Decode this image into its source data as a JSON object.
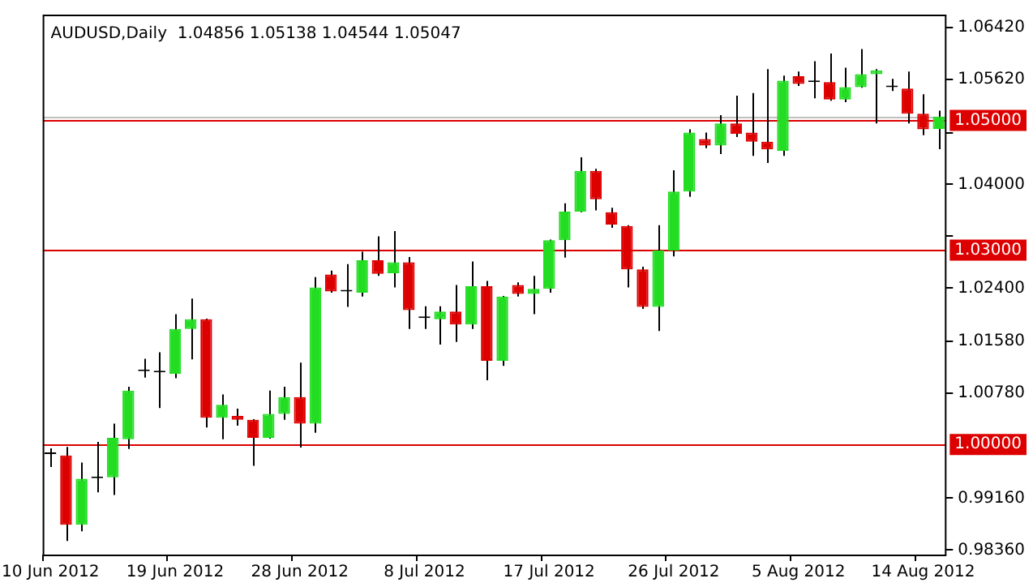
{
  "chart_data": {
    "type": "candlestick",
    "title": "AUDUSD,Daily  1.04856 1.05138 1.04544 1.05047",
    "categories": [
      "10 Jun 2012",
      null,
      null,
      null,
      null,
      null,
      null,
      null,
      "19 Jun 2012",
      null,
      null,
      null,
      null,
      null,
      null,
      null,
      "28 Jun 2012",
      null,
      null,
      null,
      null,
      null,
      null,
      null,
      "8 Jul 2012",
      null,
      null,
      null,
      null,
      null,
      null,
      null,
      "17 Jul 2012",
      null,
      null,
      null,
      null,
      null,
      null,
      null,
      "26 Jul 2012",
      null,
      null,
      null,
      null,
      null,
      null,
      null,
      "5 Aug 2012",
      null,
      null,
      null,
      null,
      null,
      null,
      null,
      "14 Aug 2012",
      null
    ],
    "ohlc": [
      [
        0.9984,
        0.9993,
        0.9964,
        0.9984
      ],
      [
        0.9982,
        0.9995,
        0.985,
        0.9875
      ],
      [
        0.9875,
        0.9971,
        0.9865,
        0.9946
      ],
      [
        0.9947,
        1.0003,
        0.9925,
        0.9947
      ],
      [
        0.9948,
        1.0031,
        0.9921,
        1.0009
      ],
      [
        1.0007,
        1.0088,
        0.9992,
        1.0082
      ],
      [
        1.0112,
        1.0131,
        1.0102,
        1.0112
      ],
      [
        1.011,
        1.0141,
        1.0055,
        1.011
      ],
      [
        1.0108,
        1.02,
        1.0101,
        1.0177
      ],
      [
        1.0177,
        1.0224,
        1.013,
        1.0192
      ],
      [
        1.0192,
        1.0193,
        1.0025,
        1.004
      ],
      [
        1.004,
        1.0076,
        1.0007,
        1.006
      ],
      [
        1.0043,
        1.0054,
        1.0028,
        1.0037
      ],
      [
        1.0037,
        1.0038,
        0.9966,
        1.0009
      ],
      [
        1.0009,
        1.0082,
        1.0008,
        1.0046
      ],
      [
        1.0046,
        1.0088,
        1.0037,
        1.0072
      ],
      [
        1.0072,
        1.0125,
        0.9994,
        1.0031
      ],
      [
        1.0031,
        1.0257,
        1.0017,
        1.0241
      ],
      [
        1.0261,
        1.0267,
        1.0233,
        1.0235
      ],
      [
        1.0235,
        1.0277,
        1.0211,
        1.0235
      ],
      [
        1.0233,
        1.0296,
        1.0227,
        1.0283
      ],
      [
        1.0283,
        1.032,
        1.0259,
        1.0262
      ],
      [
        1.0263,
        1.0328,
        1.0241,
        1.028
      ],
      [
        1.028,
        1.0288,
        1.0177,
        1.0206
      ],
      [
        1.0194,
        1.0212,
        1.0177,
        1.0194
      ],
      [
        1.0192,
        1.0212,
        1.0153,
        1.0204
      ],
      [
        1.0204,
        1.0245,
        1.0157,
        1.0184
      ],
      [
        1.0184,
        1.0281,
        1.0177,
        1.0243
      ],
      [
        1.0243,
        1.0251,
        1.0098,
        1.0128
      ],
      [
        1.0128,
        1.0228,
        1.012,
        1.0227
      ],
      [
        1.0245,
        1.0249,
        1.0227,
        1.0231
      ],
      [
        1.0231,
        1.0259,
        1.02,
        1.0239
      ],
      [
        1.0239,
        1.0315,
        1.0233,
        1.0314
      ],
      [
        1.0314,
        1.0371,
        1.0287,
        1.0358
      ],
      [
        1.0358,
        1.0442,
        1.0357,
        1.0421
      ],
      [
        1.0421,
        1.0424,
        1.036,
        1.0377
      ],
      [
        1.0357,
        1.0364,
        1.0333,
        1.0338
      ],
      [
        1.0336,
        1.0337,
        1.0241,
        1.0269
      ],
      [
        1.0269,
        1.0273,
        1.0208,
        1.0211
      ],
      [
        1.0211,
        1.0337,
        1.0174,
        1.0298
      ],
      [
        1.0298,
        1.0422,
        1.0289,
        1.0389
      ],
      [
        1.0389,
        1.0485,
        1.0381,
        1.048
      ],
      [
        1.047,
        1.048,
        1.0456,
        1.046
      ],
      [
        1.046,
        1.0507,
        1.0447,
        1.0494
      ],
      [
        1.0494,
        1.0537,
        1.0473,
        1.0478
      ],
      [
        1.048,
        1.0541,
        1.0444,
        1.0466
      ],
      [
        1.0466,
        1.0578,
        1.0433,
        1.0454
      ],
      [
        1.0452,
        1.0568,
        1.0444,
        1.056
      ],
      [
        1.0567,
        1.0574,
        1.0552,
        1.0555
      ],
      [
        1.0558,
        1.059,
        1.0533,
        1.0558
      ],
      [
        1.0558,
        1.0602,
        1.0529,
        1.0531
      ],
      [
        1.0531,
        1.058,
        1.0527,
        1.055
      ],
      [
        1.055,
        1.0609,
        1.0549,
        1.057
      ],
      [
        1.057,
        1.0578,
        1.0494,
        1.0576
      ],
      [
        1.055,
        1.0563,
        1.0544,
        1.055
      ],
      [
        1.0548,
        1.0574,
        1.0494,
        1.0509
      ],
      [
        1.0509,
        1.0539,
        1.0476,
        1.0485
      ],
      [
        1.04856,
        1.05138,
        1.04544,
        1.05047
      ]
    ],
    "colors": [
      "#000000",
      "#dd0000",
      "#22dd22",
      "#000000",
      "#22dd22",
      "#22dd22",
      "#000000",
      "#000000",
      "#22dd22",
      "#22dd22",
      "#dd0000",
      "#22dd22",
      "#dd0000",
      "#dd0000",
      "#22dd22",
      "#22dd22",
      "#dd0000",
      "#22dd22",
      "#dd0000",
      "#000000",
      "#22dd22",
      "#dd0000",
      "#22dd22",
      "#dd0000",
      "#000000",
      "#22dd22",
      "#dd0000",
      "#22dd22",
      "#dd0000",
      "#22dd22",
      "#dd0000",
      "#22dd22",
      "#22dd22",
      "#22dd22",
      "#22dd22",
      "#dd0000",
      "#dd0000",
      "#dd0000",
      "#dd0000",
      "#22dd22",
      "#22dd22",
      "#22dd22",
      "#dd0000",
      "#22dd22",
      "#dd0000",
      "#dd0000",
      "#dd0000",
      "#22dd22",
      "#dd0000",
      "#000000",
      "#dd0000",
      "#22dd22",
      "#22dd22",
      "#22dd22",
      "#000000",
      "#dd0000",
      "#dd0000",
      "#22dd22"
    ],
    "ylim": [
      0.9829,
      1.0662
    ],
    "yticks": [
      {
        "value": 0.9836,
        "label": "0.98360"
      },
      {
        "value": 0.9916,
        "label": "0.99160"
      },
      {
        "value": 1.0078,
        "label": "1.00780"
      },
      {
        "value": 1.0158,
        "label": "1.01580"
      },
      {
        "value": 1.024,
        "label": "1.02400"
      },
      {
        "value": 1.032,
        "label": null
      },
      {
        "value": 1.04,
        "label": "1.04000"
      },
      {
        "value": 1.048,
        "label": null
      },
      {
        "value": 1.0562,
        "label": "1.05620"
      },
      {
        "value": 1.0642,
        "label": "1.06420"
      }
    ],
    "ref_lines": [
      {
        "axis": "y",
        "value": 1.05047,
        "color": "#c0c0c0"
      },
      {
        "axis": "y",
        "value": 1.05,
        "label": "1.05000",
        "color": "#dd0000"
      },
      {
        "axis": "y",
        "value": 1.03,
        "label": "1.03000",
        "color": "#dd0000"
      },
      {
        "axis": "y",
        "value": 1.0,
        "label": "1.00000",
        "color": "#dd0000"
      }
    ],
    "grid": false,
    "legend": false
  }
}
